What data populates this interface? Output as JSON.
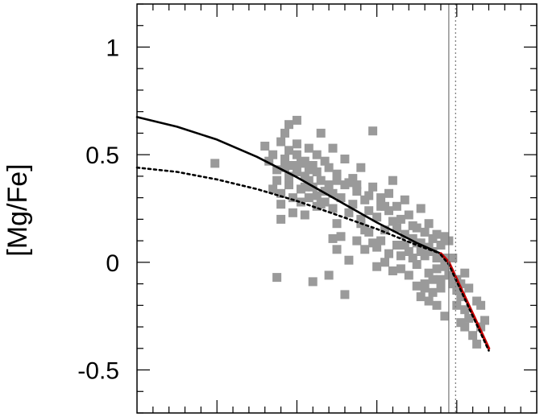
{
  "chart_data": {
    "type": "scatter",
    "title": "",
    "xlabel": "",
    "ylabel": "[Mg/Fe]",
    "xlim": [
      0,
      1
    ],
    "ylim": [
      -0.7,
      1.2
    ],
    "yticks": [
      {
        "value": 1,
        "label": "1"
      },
      {
        "value": 0.5,
        "label": "0.5"
      },
      {
        "value": 0,
        "label": "0"
      },
      {
        "value": -0.5,
        "label": "-0.5"
      }
    ],
    "y_minor_step": 0.1,
    "x_tick_step": 0.04,
    "colors": {
      "points": "#9a9a9a",
      "model_solid": "#000000",
      "model_dotted": "#000000",
      "highlight": "#cc0000",
      "vline": "#777777"
    },
    "vlines": [
      {
        "x": 0.78,
        "style": "solid"
      },
      {
        "x": 0.797,
        "style": "dotted"
      }
    ],
    "series": [
      {
        "kind": "line",
        "style": "solid",
        "color": "#000000",
        "x": [
          0.0,
          0.1,
          0.2,
          0.3,
          0.4,
          0.5,
          0.6,
          0.7,
          0.76
        ],
        "y": [
          0.675,
          0.63,
          0.57,
          0.49,
          0.395,
          0.29,
          0.185,
          0.09,
          0.04
        ]
      },
      {
        "kind": "line",
        "style": "dotted",
        "color": "#000000",
        "x": [
          0.0,
          0.1,
          0.2,
          0.3,
          0.4,
          0.5,
          0.6,
          0.7,
          0.76
        ],
        "y": [
          0.44,
          0.42,
          0.385,
          0.34,
          0.285,
          0.22,
          0.155,
          0.08,
          0.04
        ]
      },
      {
        "kind": "line",
        "style": "solid",
        "color": "#cc0000",
        "x": [
          0.76,
          0.78,
          0.8,
          0.82,
          0.84,
          0.86,
          0.88
        ],
        "y": [
          0.04,
          0.0,
          -0.08,
          -0.16,
          -0.24,
          -0.32,
          -0.4
        ]
      },
      {
        "kind": "line",
        "style": "dotted",
        "color": "#000000",
        "x": [
          0.76,
          0.78,
          0.8,
          0.82,
          0.84,
          0.86,
          0.88
        ],
        "y": [
          0.035,
          -0.01,
          -0.09,
          -0.17,
          -0.25,
          -0.33,
          -0.41
        ]
      },
      {
        "kind": "scatter",
        "marker": "square",
        "color": "#9a9a9a",
        "points": [
          [
            0.195,
            0.46
          ],
          [
            0.32,
            0.54
          ],
          [
            0.33,
            0.47
          ],
          [
            0.34,
            0.5
          ],
          [
            0.35,
            0.43
          ],
          [
            0.35,
            0.38
          ],
          [
            0.36,
            0.56
          ],
          [
            0.36,
            0.27
          ],
          [
            0.36,
            0.32
          ],
          [
            0.37,
            0.6
          ],
          [
            0.37,
            0.48
          ],
          [
            0.38,
            0.52
          ],
          [
            0.38,
            0.4
          ],
          [
            0.38,
            0.36
          ],
          [
            0.39,
            0.45
          ],
          [
            0.39,
            0.3
          ],
          [
            0.4,
            0.55
          ],
          [
            0.4,
            0.5
          ],
          [
            0.4,
            0.42
          ],
          [
            0.41,
            0.34
          ],
          [
            0.41,
            0.28
          ],
          [
            0.42,
            0.47
          ],
          [
            0.42,
            0.4
          ],
          [
            0.42,
            0.22
          ],
          [
            0.43,
            0.53
          ],
          [
            0.43,
            0.38
          ],
          [
            0.43,
            0.3
          ],
          [
            0.44,
            0.45
          ],
          [
            0.44,
            0.35
          ],
          [
            0.45,
            0.5
          ],
          [
            0.45,
            0.26
          ],
          [
            0.45,
            0.42
          ],
          [
            0.46,
            0.38
          ],
          [
            0.46,
            0.6
          ],
          [
            0.47,
            0.47
          ],
          [
            0.47,
            0.33
          ],
          [
            0.47,
            0.28
          ],
          [
            0.48,
            0.44
          ],
          [
            0.48,
            0.36
          ],
          [
            0.49,
            0.53
          ],
          [
            0.49,
            0.25
          ],
          [
            0.49,
            0.32
          ],
          [
            0.5,
            0.41
          ],
          [
            0.5,
            0.18
          ],
          [
            0.5,
            0.06
          ],
          [
            0.51,
            0.3
          ],
          [
            0.51,
            0.12
          ],
          [
            0.52,
            0.48
          ],
          [
            0.52,
            0.36
          ],
          [
            0.53,
            0.23
          ],
          [
            0.53,
            0.01
          ],
          [
            0.54,
            0.39
          ],
          [
            0.54,
            0.27
          ],
          [
            0.55,
            0.1
          ],
          [
            0.55,
            0.33
          ],
          [
            0.56,
            0.44
          ],
          [
            0.56,
            0.18
          ],
          [
            0.57,
            0.29
          ],
          [
            0.57,
            0.06
          ],
          [
            0.58,
            0.24
          ],
          [
            0.58,
            0.14
          ],
          [
            0.59,
            0.61
          ],
          [
            0.59,
            0.35
          ],
          [
            0.6,
            0.21
          ],
          [
            0.6,
            -0.02
          ],
          [
            0.61,
            0.3
          ],
          [
            0.61,
            0.1
          ],
          [
            0.62,
            0.26
          ],
          [
            0.62,
            0.15
          ],
          [
            0.63,
            0.32
          ],
          [
            0.63,
            0.04
          ],
          [
            0.64,
            0.19
          ],
          [
            0.64,
            0.38
          ],
          [
            0.65,
            0.26
          ],
          [
            0.65,
            0.08
          ],
          [
            0.66,
            0.2
          ],
          [
            0.66,
            -0.03
          ],
          [
            0.67,
            0.13
          ],
          [
            0.67,
            0.29
          ],
          [
            0.68,
            0.22
          ],
          [
            0.68,
            0.05
          ],
          [
            0.69,
            0.11
          ],
          [
            0.69,
            0.17
          ],
          [
            0.7,
            0.16
          ],
          [
            0.7,
            -0.01
          ],
          [
            0.71,
            0.25
          ],
          [
            0.71,
            0.09
          ],
          [
            0.72,
            0.14
          ],
          [
            0.72,
            0.03
          ],
          [
            0.73,
            0.18
          ],
          [
            0.73,
            -0.05
          ],
          [
            0.74,
            0.11
          ],
          [
            0.74,
            0.05
          ],
          [
            0.75,
            0.13
          ],
          [
            0.75,
            -0.03
          ],
          [
            0.76,
            0.08
          ],
          [
            0.76,
            -0.08
          ],
          [
            0.77,
            0.12
          ],
          [
            0.77,
            0.02
          ],
          [
            0.78,
            -0.06
          ],
          [
            0.79,
            0.02
          ],
          [
            0.79,
            -0.1
          ],
          [
            0.8,
            -0.13
          ],
          [
            0.8,
            -0.2
          ],
          [
            0.81,
            -0.16
          ],
          [
            0.81,
            -0.28
          ],
          [
            0.82,
            -0.05
          ],
          [
            0.82,
            -0.22
          ],
          [
            0.83,
            -0.12
          ],
          [
            0.83,
            -0.26
          ],
          [
            0.84,
            -0.34
          ],
          [
            0.85,
            -0.18
          ],
          [
            0.85,
            -0.38
          ],
          [
            0.86,
            -0.2
          ],
          [
            0.86,
            -0.3
          ],
          [
            0.87,
            -0.27
          ],
          [
            0.6,
            0.07
          ],
          [
            0.66,
            0.03
          ],
          [
            0.68,
            -0.06
          ],
          [
            0.7,
            -0.11
          ],
          [
            0.71,
            -0.16
          ],
          [
            0.72,
            -0.1
          ],
          [
            0.73,
            -0.18
          ],
          [
            0.74,
            -0.14
          ],
          [
            0.75,
            -0.2
          ],
          [
            0.76,
            -0.12
          ],
          [
            0.77,
            -0.25
          ],
          [
            0.72,
            -0.12
          ],
          [
            0.44,
            -0.09
          ],
          [
            0.35,
            -0.07
          ],
          [
            0.48,
            -0.06
          ],
          [
            0.52,
            -0.15
          ],
          [
            0.49,
            0.11
          ],
          [
            0.56,
            0.2
          ],
          [
            0.62,
            0.0
          ],
          [
            0.64,
            -0.04
          ],
          [
            0.36,
            0.2
          ],
          [
            0.39,
            0.23
          ],
          [
            0.41,
            0.46
          ],
          [
            0.4,
            0.66
          ],
          [
            0.38,
            0.64
          ],
          [
            0.42,
            0.35
          ],
          [
            0.45,
            0.31
          ],
          [
            0.5,
            0.38
          ],
          [
            0.55,
            0.36
          ],
          [
            0.58,
            0.31
          ],
          [
            0.61,
            0.26
          ],
          [
            0.63,
            0.24
          ],
          [
            0.34,
            0.34
          ],
          [
            0.37,
            0.44
          ],
          [
            0.43,
            0.43
          ],
          [
            0.46,
            0.27
          ],
          [
            0.53,
            0.37
          ],
          [
            0.57,
            0.15
          ],
          [
            0.59,
            0.09
          ],
          [
            0.65,
            0.16
          ],
          [
            0.67,
            0.08
          ],
          [
            0.69,
            0.02
          ],
          [
            0.7,
            0.09
          ],
          [
            0.71,
            0.05
          ],
          [
            0.73,
            0.07
          ],
          [
            0.74,
            -0.08
          ],
          [
            0.75,
            0.02
          ],
          [
            0.77,
            -0.02
          ],
          [
            0.78,
            0.1
          ],
          [
            0.8,
            -0.08
          ],
          [
            0.81,
            -0.1
          ],
          [
            0.82,
            -0.3
          ]
        ]
      }
    ]
  }
}
